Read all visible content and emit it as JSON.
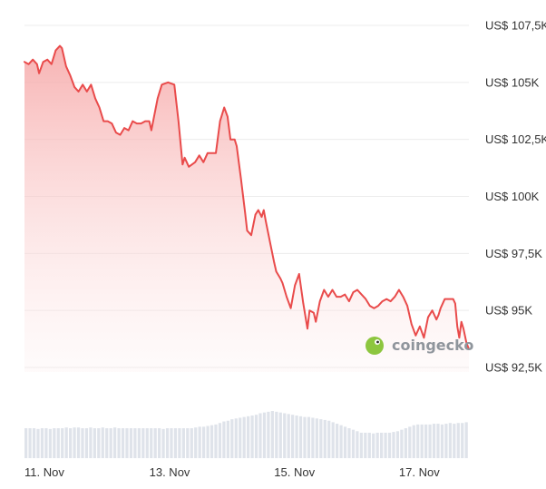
{
  "chart_data": {
    "type": "area",
    "series": [
      {
        "values": [
          [
            0,
            105.9
          ],
          [
            0.1,
            105.8
          ],
          [
            0.2,
            106.0
          ],
          [
            0.3,
            105.8
          ],
          [
            0.35,
            105.4
          ],
          [
            0.45,
            105.9
          ],
          [
            0.55,
            106.0
          ],
          [
            0.65,
            105.8
          ],
          [
            0.75,
            106.4
          ],
          [
            0.85,
            106.6
          ],
          [
            0.9,
            106.5
          ],
          [
            1.0,
            105.7
          ],
          [
            1.1,
            105.3
          ],
          [
            1.2,
            104.8
          ],
          [
            1.3,
            104.6
          ],
          [
            1.4,
            104.9
          ],
          [
            1.5,
            104.6
          ],
          [
            1.6,
            104.9
          ],
          [
            1.7,
            104.3
          ],
          [
            1.8,
            103.9
          ],
          [
            1.9,
            103.3
          ],
          [
            2.0,
            103.3
          ],
          [
            2.1,
            103.2
          ],
          [
            2.2,
            102.8
          ],
          [
            2.3,
            102.7
          ],
          [
            2.4,
            103.0
          ],
          [
            2.5,
            102.9
          ],
          [
            2.6,
            103.3
          ],
          [
            2.7,
            103.2
          ],
          [
            2.8,
            103.2
          ],
          [
            2.9,
            103.3
          ],
          [
            3.0,
            103.3
          ],
          [
            3.05,
            102.9
          ],
          [
            3.2,
            104.3
          ],
          [
            3.3,
            104.9
          ],
          [
            3.45,
            105.0
          ],
          [
            3.6,
            104.9
          ],
          [
            3.7,
            103.3
          ],
          [
            3.8,
            101.4
          ],
          [
            3.85,
            101.7
          ],
          [
            3.95,
            101.3
          ],
          [
            4.1,
            101.5
          ],
          [
            4.2,
            101.8
          ],
          [
            4.3,
            101.5
          ],
          [
            4.4,
            101.9
          ],
          [
            4.5,
            101.9
          ],
          [
            4.6,
            101.9
          ],
          [
            4.7,
            103.3
          ],
          [
            4.8,
            103.9
          ],
          [
            4.88,
            103.5
          ],
          [
            4.95,
            102.5
          ],
          [
            5.05,
            102.5
          ],
          [
            5.1,
            102.2
          ],
          [
            5.2,
            100.8
          ],
          [
            5.3,
            99.3
          ],
          [
            5.35,
            98.5
          ],
          [
            5.45,
            98.3
          ],
          [
            5.55,
            99.2
          ],
          [
            5.62,
            99.4
          ],
          [
            5.7,
            99.1
          ],
          [
            5.75,
            99.4
          ],
          [
            5.8,
            98.9
          ],
          [
            5.9,
            98.0
          ],
          [
            6.0,
            97.1
          ],
          [
            6.05,
            96.7
          ],
          [
            6.15,
            96.4
          ],
          [
            6.2,
            96.2
          ],
          [
            6.3,
            95.6
          ],
          [
            6.4,
            95.1
          ],
          [
            6.5,
            96.1
          ],
          [
            6.6,
            96.6
          ],
          [
            6.7,
            95.3
          ],
          [
            6.8,
            94.2
          ],
          [
            6.85,
            95.0
          ],
          [
            6.95,
            94.9
          ],
          [
            7.0,
            94.5
          ],
          [
            7.1,
            95.4
          ],
          [
            7.2,
            95.9
          ],
          [
            7.3,
            95.6
          ],
          [
            7.4,
            95.9
          ],
          [
            7.5,
            95.6
          ],
          [
            7.6,
            95.6
          ],
          [
            7.7,
            95.7
          ],
          [
            7.8,
            95.4
          ],
          [
            7.9,
            95.8
          ],
          [
            8.0,
            95.9
          ],
          [
            8.1,
            95.7
          ],
          [
            8.2,
            95.5
          ],
          [
            8.3,
            95.2
          ],
          [
            8.4,
            95.1
          ],
          [
            8.5,
            95.2
          ],
          [
            8.6,
            95.4
          ],
          [
            8.7,
            95.5
          ],
          [
            8.8,
            95.4
          ],
          [
            8.9,
            95.6
          ],
          [
            9.0,
            95.9
          ],
          [
            9.1,
            95.6
          ],
          [
            9.2,
            95.2
          ],
          [
            9.3,
            94.4
          ],
          [
            9.4,
            93.9
          ],
          [
            9.5,
            94.3
          ],
          [
            9.6,
            93.8
          ],
          [
            9.7,
            94.7
          ],
          [
            9.8,
            95.0
          ],
          [
            9.9,
            94.6
          ],
          [
            9.95,
            94.8
          ],
          [
            10.0,
            95.1
          ],
          [
            10.1,
            95.5
          ],
          [
            10.2,
            95.5
          ],
          [
            10.3,
            95.5
          ],
          [
            10.35,
            95.3
          ],
          [
            10.4,
            94.3
          ],
          [
            10.45,
            93.8
          ],
          [
            10.5,
            94.5
          ],
          [
            10.55,
            94.2
          ],
          [
            10.62,
            93.6
          ],
          [
            10.68,
            93.3
          ]
        ]
      },
      {
        "name": "volume",
        "values": [
          0.4,
          0.4,
          0.4,
          0.39,
          0.4,
          0.4,
          0.39,
          0.4,
          0.4,
          0.4,
          0.41,
          0.4,
          0.41,
          0.41,
          0.4,
          0.4,
          0.41,
          0.4,
          0.4,
          0.41,
          0.4,
          0.4,
          0.41,
          0.4,
          0.4,
          0.4,
          0.4,
          0.4,
          0.4,
          0.4,
          0.4,
          0.4,
          0.4,
          0.4,
          0.39,
          0.4,
          0.4,
          0.4,
          0.4,
          0.4,
          0.4,
          0.4,
          0.41,
          0.42,
          0.42,
          0.43,
          0.44,
          0.45,
          0.47,
          0.49,
          0.5,
          0.52,
          0.53,
          0.54,
          0.55,
          0.56,
          0.57,
          0.58,
          0.6,
          0.61,
          0.62,
          0.63,
          0.62,
          0.61,
          0.6,
          0.59,
          0.58,
          0.57,
          0.56,
          0.55,
          0.55,
          0.54,
          0.53,
          0.52,
          0.51,
          0.5,
          0.48,
          0.46,
          0.44,
          0.42,
          0.4,
          0.38,
          0.36,
          0.34,
          0.34,
          0.34,
          0.33,
          0.34,
          0.34,
          0.34,
          0.34,
          0.35,
          0.36,
          0.38,
          0.4,
          0.42,
          0.44,
          0.45,
          0.45,
          0.45,
          0.45,
          0.46,
          0.46,
          0.45,
          0.46,
          0.47,
          0.46,
          0.47,
          0.47,
          0.48
        ]
      }
    ],
    "x_ticks": [
      "11. Nov",
      "13. Nov",
      "15. Nov",
      "17. Nov"
    ],
    "x_tick_positions": [
      0,
      3,
      6,
      9
    ],
    "y_ticks": [
      "US$ 92,5K",
      "US$ 95K",
      "US$ 97,5K",
      "US$ 100K",
      "US$ 102,5K",
      "US$ 105K",
      "US$ 107,5K"
    ],
    "y_tick_values": [
      92.5,
      95,
      97.5,
      100,
      102.5,
      105,
      107.5
    ],
    "ylim": [
      92.5,
      107.5
    ],
    "xlim": [
      0,
      10.68
    ],
    "grid": true,
    "colors": {
      "line": "#e94b4b",
      "fill": "#f6a9a9",
      "volume": "#dfe3ea",
      "grid": "#ececec"
    },
    "watermark": "coingecko"
  }
}
